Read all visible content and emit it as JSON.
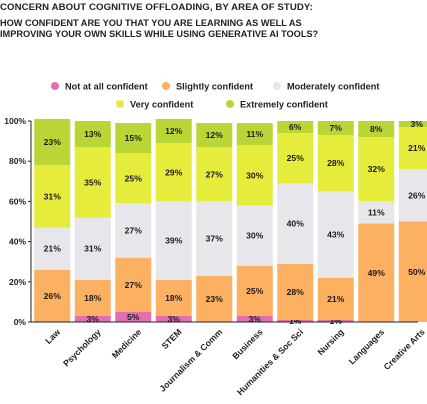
{
  "title": "CONCERN ABOUT COGNITIVE OFFLOADING, BY AREA OF STUDY:",
  "subtitle": "HOW CONFIDENT ARE YOU THAT YOU ARE LEARNING AS WELL AS\nIMPROVING YOUR OWN SKILLS  WHILE USING GENERATIVE AI TOOLS?",
  "chart_data": {
    "type": "bar",
    "stacked": true,
    "categories": [
      "Law",
      "Psychology",
      "Medicine",
      "STEM",
      "Journalism & Comm",
      "Business",
      "Humanities & Soc Sci",
      "Nursing",
      "Languages",
      "Creative Arts"
    ],
    "series": [
      {
        "name": "Not at all confident",
        "color": "#e36fb0",
        "values": [
          0,
          3,
          5,
          3,
          0,
          3,
          1,
          1,
          0,
          0
        ],
        "labels": [
          "",
          "3%",
          "5%",
          "3%",
          "",
          "3%",
          "1%",
          "1%",
          "",
          ""
        ]
      },
      {
        "name": "Slightly confident",
        "color": "#fbb062",
        "values": [
          26,
          18,
          27,
          18,
          23,
          25,
          28,
          21,
          49,
          50
        ],
        "labels": [
          "26%",
          "18%",
          "27%",
          "18%",
          "23%",
          "25%",
          "28%",
          "21%",
          "49%",
          "50%"
        ]
      },
      {
        "name": "Moderately confident",
        "color": "#e7e7eb",
        "values": [
          21,
          31,
          27,
          39,
          37,
          30,
          40,
          43,
          11,
          26
        ],
        "labels": [
          "21%",
          "31%",
          "27%",
          "39%",
          "37%",
          "30%",
          "40%",
          "43%",
          "11%",
          "26%"
        ]
      },
      {
        "name": "Very confident",
        "color": "#e6ec3c",
        "values": [
          31,
          35,
          25,
          29,
          27,
          30,
          25,
          28,
          32,
          21
        ],
        "labels": [
          "31%",
          "35%",
          "25%",
          "29%",
          "27%",
          "30%",
          "25%",
          "28%",
          "32%",
          "21%"
        ]
      },
      {
        "name": "Extremely confident",
        "color": "#bad636",
        "values": [
          23,
          13,
          15,
          12,
          12,
          11,
          6,
          7,
          8,
          3
        ],
        "labels": [
          "23%",
          "13%",
          "15%",
          "12%",
          "12%",
          "11%",
          "6%",
          "7%",
          "8%",
          "3%"
        ]
      }
    ],
    "yticks": [
      "0%",
      "20%",
      "40%",
      "60%",
      "80%",
      "100%"
    ],
    "ylim": [
      0,
      100
    ],
    "xlabel": "",
    "ylabel": "",
    "grid": false,
    "legend": "top"
  }
}
